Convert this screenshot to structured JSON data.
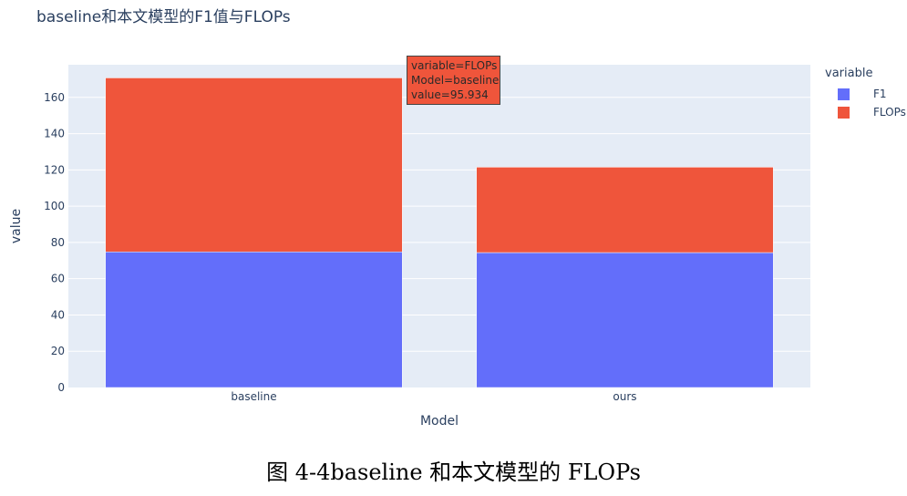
{
  "title": "baseline和本文模型的F1值与FLOPs",
  "caption": "图 4-4baseline 和本文模型的 FLOPs",
  "chart_data": {
    "type": "bar",
    "stacked": true,
    "categories": [
      "baseline",
      "ours"
    ],
    "series": [
      {
        "name": "F1",
        "color": "#636efa",
        "values": [
          74.8,
          74.4
        ]
      },
      {
        "name": "FLOPs",
        "color": "#ef553b",
        "values": [
          95.934,
          47.1
        ]
      }
    ],
    "xlabel": "Model",
    "ylabel": "value",
    "ylim": [
      0,
      178
    ],
    "yticks": [
      0,
      20,
      40,
      60,
      80,
      100,
      120,
      140,
      160
    ],
    "grid": true,
    "legend_title": "variable",
    "legend_position": "right",
    "plot_background": "#e5ecf6"
  },
  "tooltip": {
    "lines": [
      "variable=FLOPs",
      "Model=baseline",
      "value=95.934"
    ]
  }
}
